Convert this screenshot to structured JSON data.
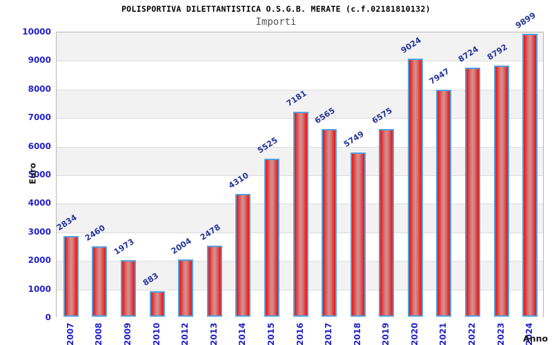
{
  "header": {
    "title": "POLISPORTIVA DILETTANTISTICA O.S.G.B. MERATE (c.f.02181810132)",
    "subtitle": "Importi"
  },
  "chart_data": {
    "type": "bar",
    "title": "POLISPORTIVA DILETTANTISTICA O.S.G.B. MERATE (c.f.02181810132)",
    "subtitle": "Importi",
    "categories": [
      "2007",
      "2008",
      "2009",
      "2010",
      "2012",
      "2013",
      "2014",
      "2015",
      "2016",
      "2017",
      "2018",
      "2019",
      "2020",
      "2021",
      "2022",
      "2023",
      "2024"
    ],
    "values": [
      2834,
      2460,
      1973,
      883,
      2004,
      2478,
      4310,
      5525,
      7181,
      6565,
      5749,
      6575,
      9024,
      7947,
      8724,
      8792,
      9899
    ],
    "xlabel": "Anno",
    "ylabel": "Euro",
    "ylim": [
      0,
      10000
    ],
    "ytick_step": 1000,
    "yticks": [
      0,
      1000,
      2000,
      3000,
      4000,
      5000,
      6000,
      7000,
      8000,
      9000,
      10000
    ],
    "grid": "horizontal-bands",
    "legend_position": "none"
  },
  "colors": {
    "bar_edge": "#e41a1a",
    "bar_center": "#d09494",
    "bar_border": "#55a0dd",
    "axis_tick_label": "#2222cc",
    "value_label": "#263899",
    "band_gray": "#f2f2f2",
    "band_white": "#ffffff",
    "grid_line": "#dcdcdc",
    "plot_border": "#b5b5b5",
    "title_color": "#000000",
    "subtitle_color": "#555555"
  }
}
